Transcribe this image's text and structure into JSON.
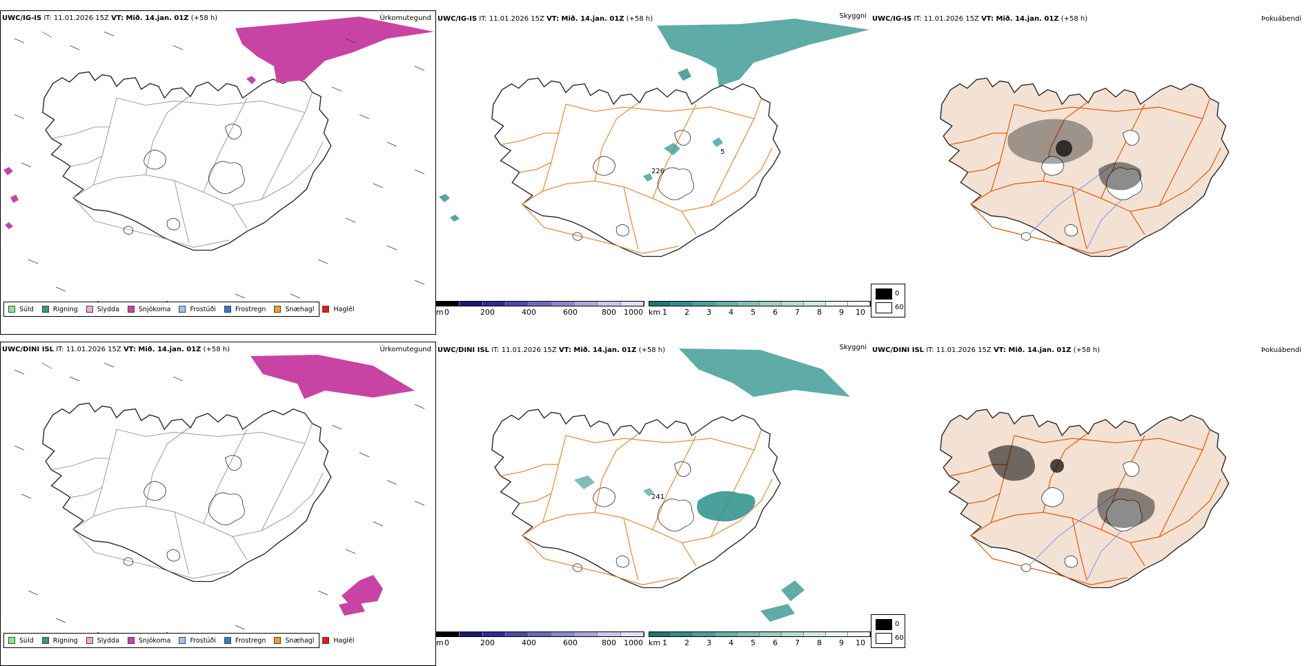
{
  "colors": {
    "land": "#f3e2d4",
    "road": "#e8590c",
    "road2": "#e98b3c",
    "river": "#7b8cf0",
    "teal": "#2a8f8a",
    "magenta": "#c844a4"
  },
  "rows": [
    {
      "model": "UWC/IG-IS",
      "it_label": "IT:",
      "it_time": "11.01.2026 15Z",
      "vt_label": "VT: Mið. 14.jan. 01Z",
      "lead": "(+58 h)",
      "precip_title": "Úrkomutegund",
      "vis_title": "Skyggni",
      "cloud_title": "Þokuábendi",
      "vis_markers": [
        "226",
        "5"
      ]
    },
    {
      "model": "UWC/DINI ISL",
      "it_label": "IT:",
      "it_time": "11.01.2026 15Z",
      "vt_label": "VT: Mið. 14.jan. 01Z",
      "lead": "(+58 h)",
      "precip_title": "Úrkomutegund",
      "vis_title": "Skyggni",
      "cloud_title": "Þokuábendi",
      "vis_markers": [
        "241"
      ]
    }
  ],
  "precip_legend": [
    {
      "label": "Súld",
      "color": "#8fe88f"
    },
    {
      "label": "Rigning",
      "color": "#3a9a6a"
    },
    {
      "label": "Slydda",
      "color": "#f0a8d8"
    },
    {
      "label": "Snjókoma",
      "color": "#c844a4"
    },
    {
      "label": "Frostúði",
      "color": "#9cc4f0"
    },
    {
      "label": "Frostregn",
      "color": "#3c78c8"
    },
    {
      "label": "Snæhagl",
      "color": "#f0a020"
    },
    {
      "label": "Haglél",
      "color": "#e81818"
    }
  ],
  "height_bar": {
    "unit": "m",
    "ticks": [
      "0",
      "200",
      "400",
      "600",
      "800",
      "1000"
    ]
  },
  "vis_bar": {
    "unit": "km",
    "ticks": [
      "1",
      "2",
      "3",
      "4",
      "5",
      "6",
      "7",
      "8",
      "9",
      "10"
    ]
  },
  "cloud_legend": {
    "black": "0",
    "white": "60"
  }
}
